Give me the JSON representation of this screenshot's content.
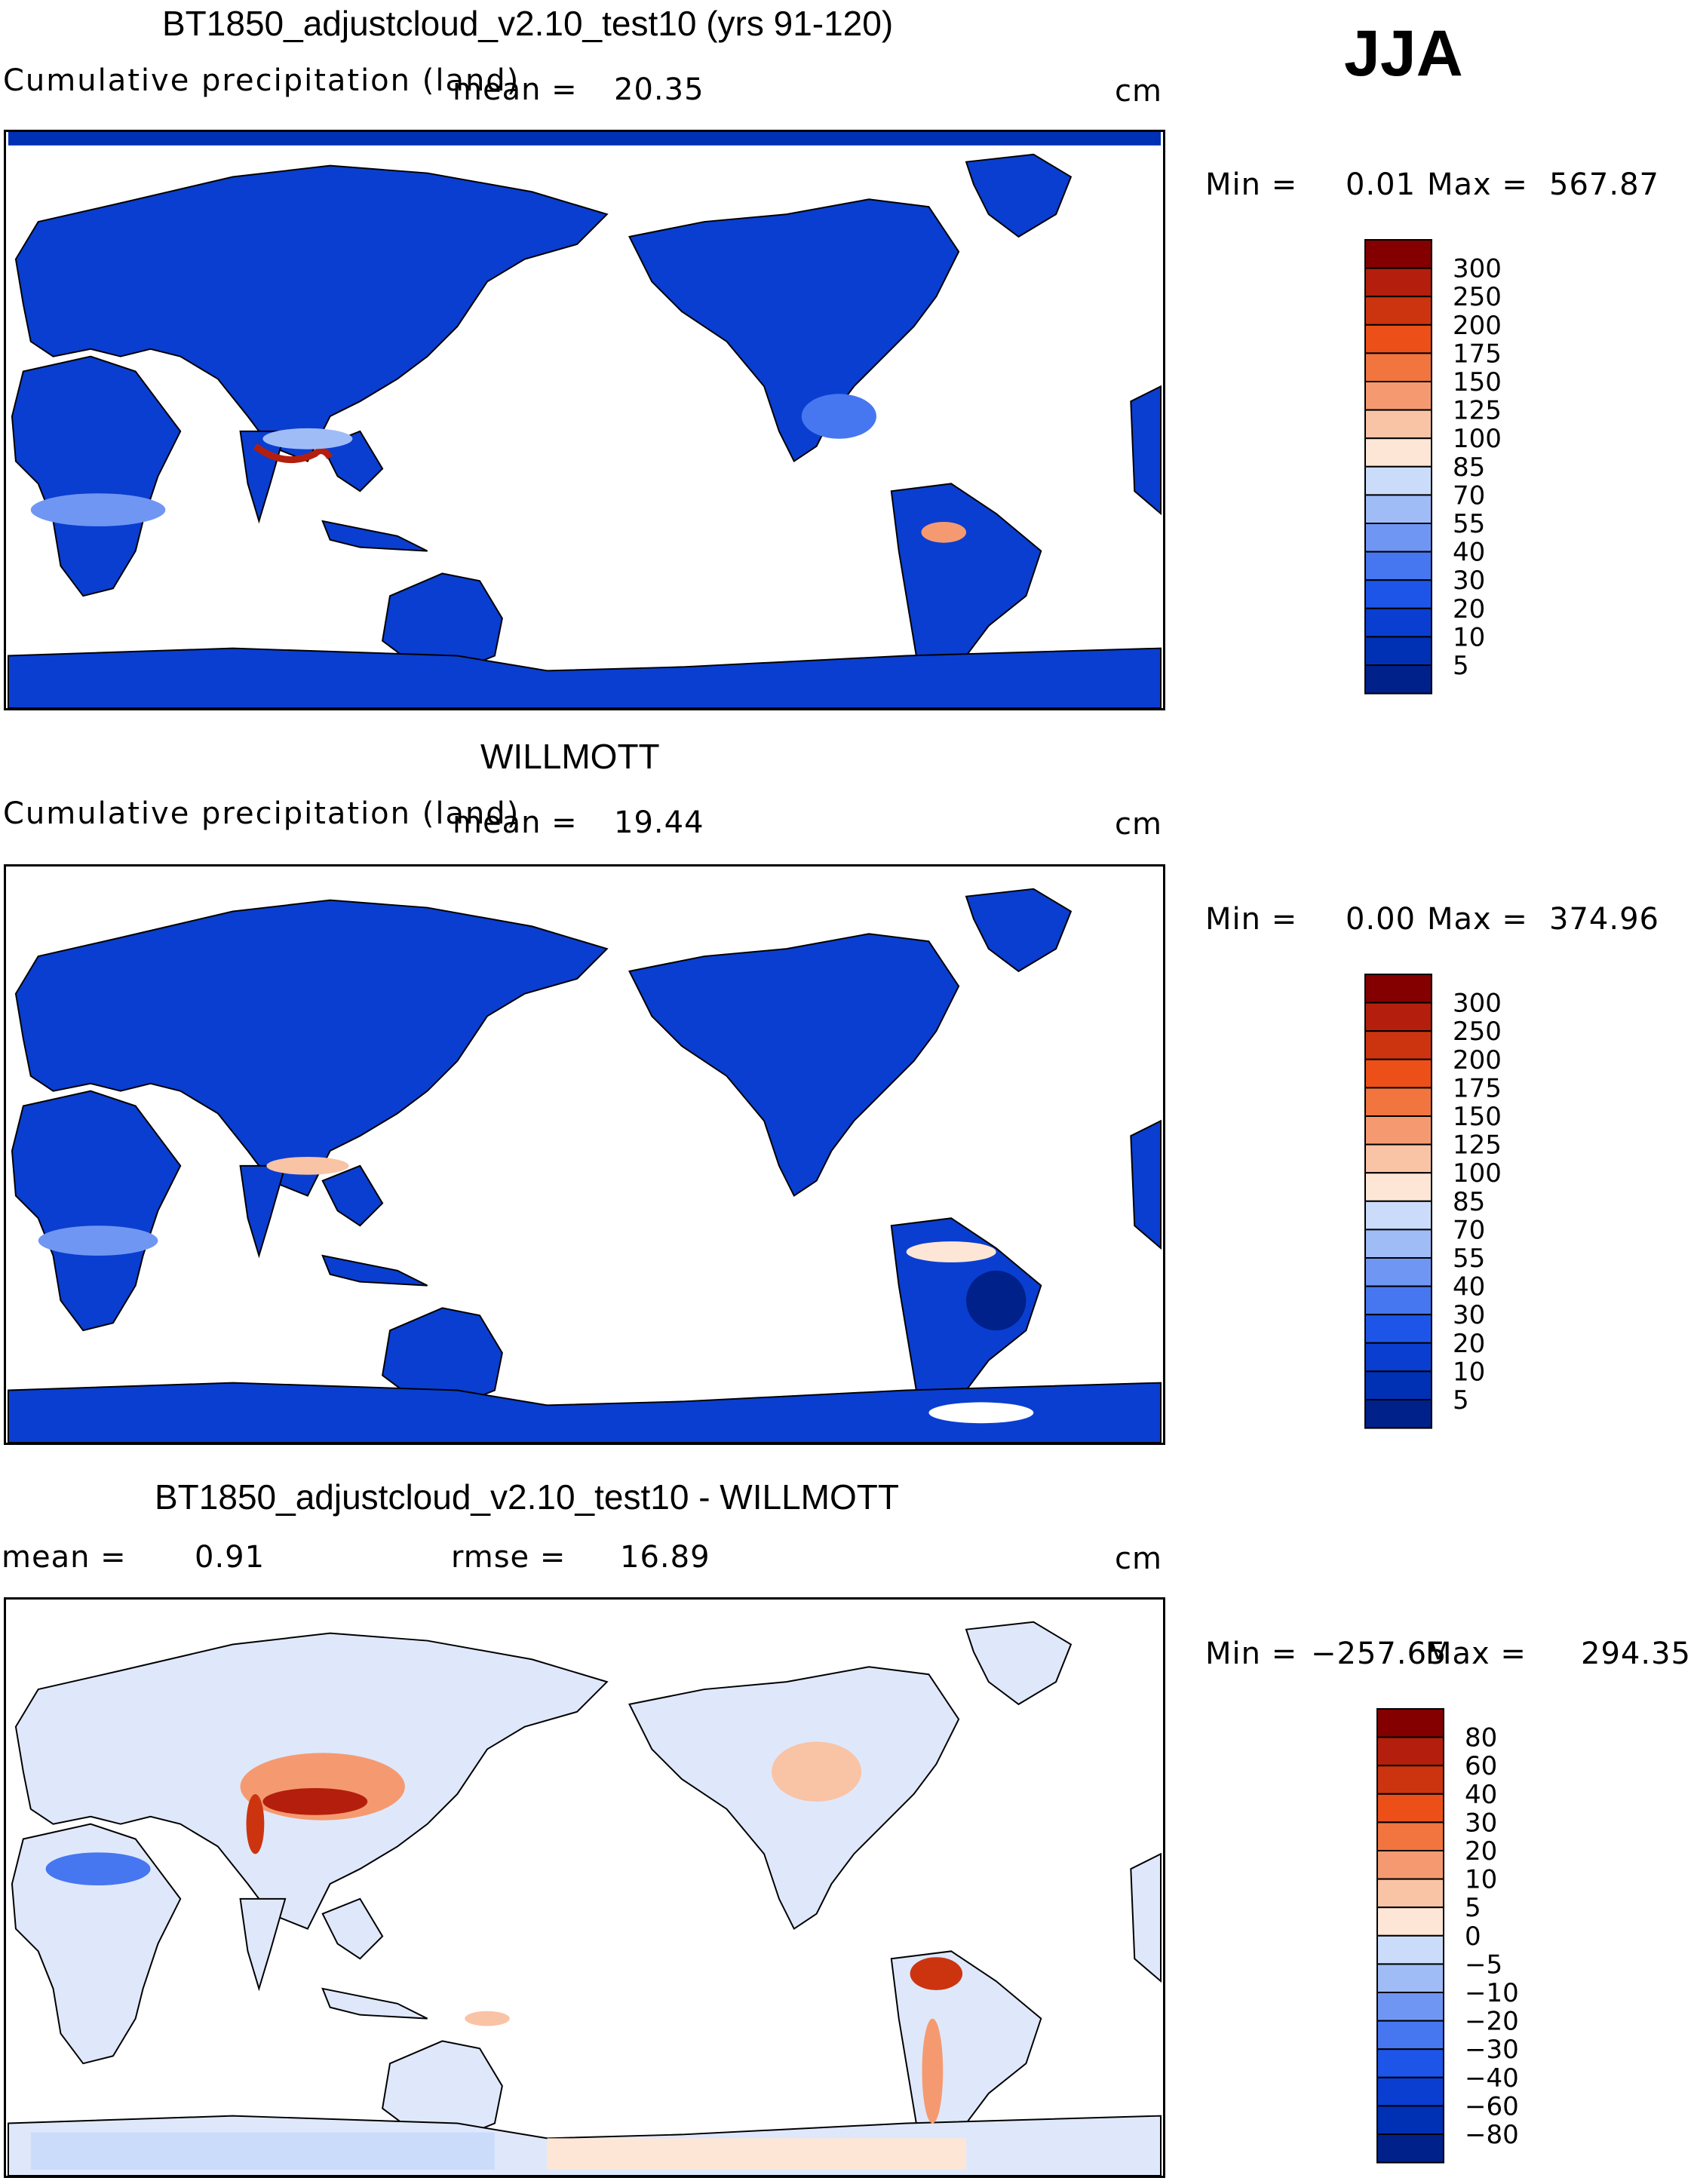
{
  "season": "JJA",
  "colors": {
    "precip": [
      "#00208a",
      "#0030b4",
      "#0a3ed0",
      "#1d55e8",
      "#4676f0",
      "#7096f4",
      "#a0bcf7",
      "#cbdcfb",
      "#fde6d6",
      "#f9c3a5",
      "#f59a70",
      "#f2753f",
      "#ec5018",
      "#cc3410",
      "#b31f0c",
      "#840000"
    ],
    "diff": [
      "#00208a",
      "#0030b4",
      "#0a3ed0",
      "#1d55e8",
      "#4676f0",
      "#7096f4",
      "#a0bcf7",
      "#cbdcfb",
      "#fde6d6",
      "#f9c3a5",
      "#f59a70",
      "#f2753f",
      "#ec5018",
      "#cc3410",
      "#b31f0c",
      "#840000"
    ]
  },
  "chart_data": [
    {
      "type": "heatmap",
      "title": "BT1850_adjustcloud_v2.10_test10 (yrs 91-120)",
      "subtitle": "Cumulative precipitation (land)",
      "units": "cm",
      "mean_label": "mean =",
      "mean_value": "20.35",
      "min_label": "Min =",
      "min_value": "0.01",
      "max_label": "Max =",
      "max_value": "567.87",
      "colorbar_levels": [
        "300",
        "250",
        "200",
        "175",
        "150",
        "125",
        "100",
        "85",
        "70",
        "55",
        "40",
        "30",
        "20",
        "10",
        "5"
      ]
    },
    {
      "type": "heatmap",
      "title": "WILLMOTT",
      "subtitle": "Cumulative precipitation (land)",
      "units": "cm",
      "mean_label": "mean =",
      "mean_value": "19.44",
      "min_label": "Min =",
      "min_value": "0.00",
      "max_label": "Max =",
      "max_value": "374.96",
      "colorbar_levels": [
        "300",
        "250",
        "200",
        "175",
        "150",
        "125",
        "100",
        "85",
        "70",
        "55",
        "40",
        "30",
        "20",
        "10",
        "5"
      ]
    },
    {
      "type": "heatmap",
      "title": "BT1850_adjustcloud_v2.10_test10 - WILLMOTT",
      "units": "cm",
      "mean_label": "mean =",
      "mean_value": "0.91",
      "rmse_label": "rmse =",
      "rmse_value": "16.89",
      "min_label": "Min =",
      "min_value": "−257.65",
      "max_label": "Max =",
      "max_value": "294.35",
      "colorbar_levels": [
        "80",
        "60",
        "40",
        "30",
        "20",
        "10",
        "5",
        "0",
        "−5",
        "−10",
        "−20",
        "−30",
        "−40",
        "−60",
        "−80"
      ]
    }
  ]
}
